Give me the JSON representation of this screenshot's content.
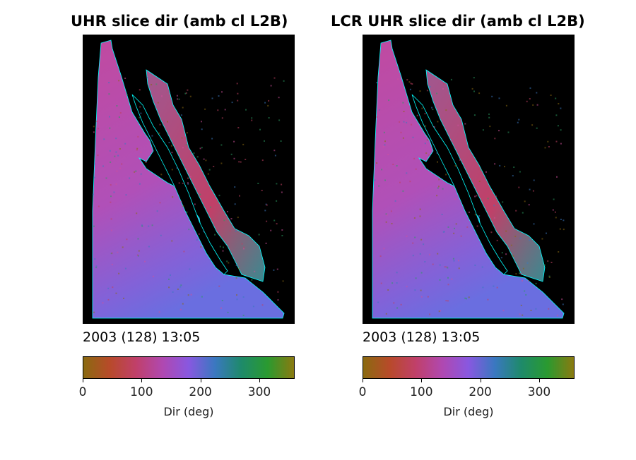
{
  "chart_data": [
    {
      "type": "heatmap",
      "title": "UHR slice dir (amb cl L2B)",
      "timestamp": "2003 (128) 13:05",
      "colorbar": {
        "label": "Dir (deg)",
        "range": [
          0,
          360
        ],
        "ticks": [
          "0",
          "100",
          "200",
          "300"
        ],
        "tick_values": [
          0,
          100,
          200,
          300
        ],
        "colors": [
          "#8a6a10",
          "#b84a2a",
          "#c0406a",
          "#b048b0",
          "#8858e0",
          "#3a78c0",
          "#1e8a6a",
          "#2a9a30",
          "#8a7a10"
        ]
      },
      "colors": {
        "land": "#000000",
        "coast": "#00ffff",
        "dominant": "#b048a8",
        "offshore": "#7868d8"
      }
    },
    {
      "type": "heatmap",
      "title": "LCR UHR slice dir (amb cl L2B)",
      "timestamp": "2003 (128) 13:05",
      "colorbar": {
        "label": "Dir (deg)",
        "range": [
          0,
          360
        ],
        "ticks": [
          "0",
          "100",
          "200",
          "300"
        ],
        "tick_values": [
          0,
          100,
          200,
          300
        ],
        "colors": [
          "#8a6a10",
          "#b84a2a",
          "#c0406a",
          "#b048b0",
          "#8858e0",
          "#3a78c0",
          "#1e8a6a",
          "#2a9a30",
          "#8a7a10"
        ]
      },
      "colors": {
        "land": "#000000",
        "coast": "#00ffff",
        "dominant": "#b048a8",
        "offshore": "#7868d8"
      }
    }
  ]
}
